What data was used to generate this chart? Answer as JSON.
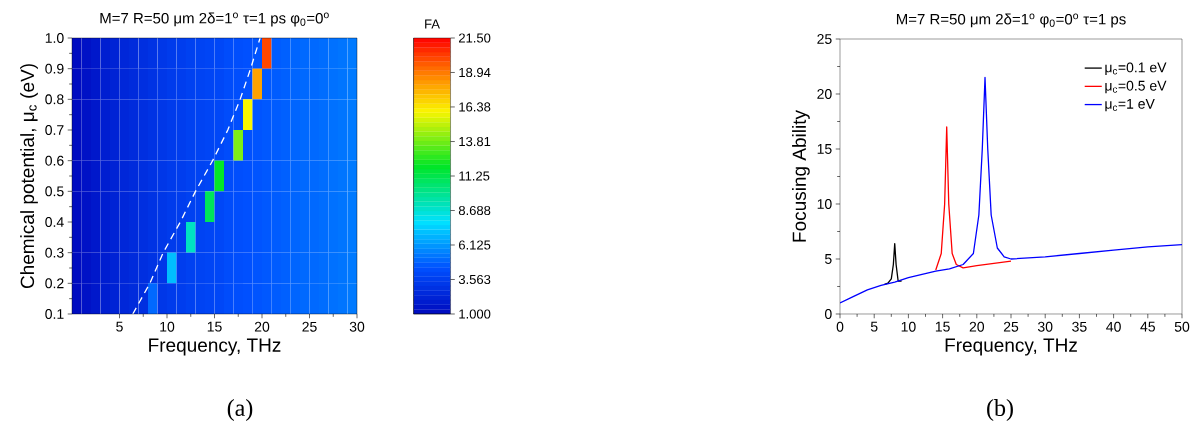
{
  "chart_data": [
    {
      "type": "heatmap",
      "title": "M=7 R=50 μm 2δ=1$^{o}$ τ=1 ps φ$_{0}$=0$^{o}$",
      "xlabel": "Frequency, THz",
      "ylabel": "Chemical potential, μ$_{c}$ (eV)",
      "clabel": "FA",
      "annotations": [
        "(a)"
      ],
      "x": [
        0.5,
        1.5,
        2.5,
        3.5,
        4.5,
        5.5,
        6.5,
        7.5,
        8.5,
        9.5,
        10.5,
        11.5,
        12.5,
        13.5,
        14.5,
        15.5,
        16.5,
        17.5,
        18.5,
        19.5,
        20.5,
        21.5,
        22.5,
        23.5,
        24.5,
        25.5,
        26.5,
        27.5,
        28.5,
        29.5
      ],
      "y": [
        0.95,
        0.85,
        0.75,
        0.65,
        0.55,
        0.45,
        0.35,
        0.25,
        0.15
      ],
      "cells": [
        [
          1.1,
          1.4,
          1.7,
          2.0,
          2.2,
          2.4,
          2.6,
          2.8,
          3.0,
          3.2,
          3.4,
          3.5,
          3.7,
          3.8,
          3.9,
          4.0,
          4.2,
          4.3,
          4.4,
          4.5,
          20,
          4.7,
          4.8,
          4.9,
          5.0,
          5.0,
          5.1,
          5.2,
          5.3,
          5.4
        ],
        [
          1.1,
          1.4,
          1.7,
          2.0,
          2.2,
          2.4,
          2.6,
          2.8,
          3.0,
          3.2,
          3.4,
          3.5,
          3.7,
          3.8,
          3.9,
          4.0,
          4.2,
          4.3,
          4.4,
          18,
          4.6,
          4.7,
          4.8,
          4.9,
          5.0,
          5.0,
          5.1,
          5.2,
          5.3,
          5.4
        ],
        [
          1.1,
          1.4,
          1.7,
          2.0,
          2.2,
          2.4,
          2.6,
          2.8,
          3.0,
          3.2,
          3.4,
          3.5,
          3.7,
          3.8,
          3.9,
          4.0,
          4.2,
          4.3,
          16,
          4.5,
          4.6,
          4.7,
          4.8,
          4.9,
          5.0,
          5.0,
          5.1,
          5.2,
          5.3,
          5.4
        ],
        [
          1.1,
          1.4,
          1.7,
          2.0,
          2.2,
          2.4,
          2.6,
          2.8,
          3.0,
          3.2,
          3.4,
          3.5,
          3.7,
          3.8,
          3.9,
          4.0,
          4.2,
          14,
          4.4,
          4.5,
          4.6,
          4.7,
          4.8,
          4.9,
          5.0,
          5.0,
          5.1,
          5.2,
          5.3,
          5.4
        ],
        [
          1.1,
          1.4,
          1.7,
          2.0,
          2.2,
          2.4,
          2.6,
          2.8,
          3.0,
          3.2,
          3.4,
          3.5,
          3.7,
          3.8,
          3.9,
          12,
          4.2,
          4.3,
          4.4,
          4.5,
          4.6,
          4.7,
          4.8,
          4.9,
          5.0,
          5.0,
          5.1,
          5.2,
          5.3,
          5.4
        ],
        [
          1.1,
          1.4,
          1.7,
          2.0,
          2.2,
          2.4,
          2.6,
          2.8,
          3.0,
          3.2,
          3.4,
          3.5,
          3.7,
          3.8,
          11,
          4.0,
          4.2,
          4.3,
          4.4,
          4.5,
          4.6,
          4.7,
          4.8,
          4.9,
          5.0,
          5.0,
          5.1,
          5.2,
          5.3,
          5.4
        ],
        [
          1.1,
          1.4,
          1.7,
          2.0,
          2.2,
          2.4,
          2.6,
          2.8,
          3.0,
          3.2,
          3.4,
          3.5,
          9,
          3.8,
          3.9,
          4.0,
          4.2,
          4.3,
          4.4,
          4.5,
          4.6,
          4.7,
          4.8,
          4.9,
          5.0,
          5.0,
          5.1,
          5.2,
          5.3,
          5.4
        ],
        [
          1.1,
          1.4,
          1.7,
          2.0,
          2.2,
          2.4,
          2.6,
          2.8,
          3.0,
          3.2,
          7,
          3.5,
          3.7,
          3.8,
          3.9,
          4.0,
          4.2,
          4.3,
          4.4,
          4.5,
          4.6,
          4.7,
          4.8,
          4.9,
          5.0,
          5.0,
          5.1,
          5.2,
          5.3,
          5.4
        ],
        [
          1.1,
          1.4,
          1.7,
          2.0,
          2.2,
          2.4,
          2.6,
          2.8,
          5,
          3.2,
          3.4,
          3.5,
          3.7,
          3.8,
          3.9,
          4.0,
          4.2,
          4.3,
          4.4,
          4.5,
          4.6,
          4.7,
          4.8,
          4.9,
          5.0,
          5.0,
          5.1,
          5.2,
          5.3,
          5.4
        ]
      ],
      "series": [
        {
          "type": "line",
          "color": "#ffffff",
          "line_style": "dashed",
          "x": [
            6.4,
            8.2,
            9.6,
            11.4,
            13.0,
            14.8,
            16.4,
            17.7,
            18.8,
            19.8
          ],
          "values": [
            0.1,
            0.2,
            0.3,
            0.4,
            0.5,
            0.6,
            0.7,
            0.8,
            0.9,
            1.0
          ]
        }
      ],
      "xlim": [
        0,
        30
      ],
      "xticks": [
        5,
        10,
        15,
        20,
        25,
        30
      ],
      "ylim": [
        0.1,
        1.0
      ],
      "yticks": [
        {
          "value": 0.1,
          "label": "0.1"
        },
        {
          "value": 0.2,
          "label": "0.2"
        },
        {
          "value": 0.3,
          "label": "0.3"
        },
        {
          "value": 0.4,
          "label": "0.4"
        },
        {
          "value": 0.5,
          "label": "0.5"
        },
        {
          "value": 0.6,
          "label": "0.6"
        },
        {
          "value": 0.7,
          "label": "0.7"
        },
        {
          "value": 0.8,
          "label": "0.8"
        },
        {
          "value": 0.9,
          "label": "0.9"
        },
        {
          "value": 1.0,
          "label": "1.0"
        }
      ],
      "clim": [
        1,
        21.5
      ],
      "cticks": [
        {
          "value": 1,
          "label": "1.000"
        },
        {
          "value": 3.563,
          "label": "3.563"
        },
        {
          "value": 6.125,
          "label": "6.125"
        },
        {
          "value": 8.688,
          "label": "8.688"
        },
        {
          "value": 11.25,
          "label": "11.25"
        },
        {
          "value": 13.81,
          "label": "13.81"
        },
        {
          "value": 16.38,
          "label": "16.38"
        },
        {
          "value": 18.94,
          "label": "18.94"
        },
        {
          "value": 21.5,
          "label": "21.50"
        }
      ]
    },
    {
      "type": "line",
      "title": "M=7 R=50 μm 2δ=1$^{o}$ φ$_{0}$=0$^{o}$ τ=1 ps",
      "xlabel": "Frequency, THz",
      "ylabel": "Focusing Ability",
      "annotations": [
        "(b)"
      ],
      "series": [
        {
          "name": "μ$_{c}$=0.1 eV",
          "color": "#000000",
          "x": [
            6.5,
            7,
            7.5,
            7.8,
            8.0,
            8.2,
            8.5,
            9
          ],
          "values": [
            2.7,
            2.8,
            3.2,
            4.5,
            6.4,
            4.5,
            3.0,
            3.0
          ]
        },
        {
          "name": "μ$_{c}$=0.5 eV",
          "color": "#ff0000",
          "x": [
            14,
            14.8,
            15.3,
            15.6,
            15.9,
            16.4,
            17,
            18,
            20,
            25
          ],
          "values": [
            4.0,
            5.5,
            10,
            17.0,
            10,
            5.5,
            4.5,
            4.2,
            4.4,
            4.8
          ]
        },
        {
          "name": "μ$_{c}$=1 eV",
          "color": "#0000ff",
          "x": [
            0,
            2,
            4,
            6,
            8,
            10,
            12,
            14,
            16,
            18,
            19.5,
            20.3,
            20.8,
            21.2,
            21.6,
            22.1,
            23,
            24,
            25,
            30,
            35,
            40,
            45,
            50
          ],
          "values": [
            1.0,
            1.6,
            2.2,
            2.6,
            2.9,
            3.3,
            3.6,
            3.9,
            4.1,
            4.5,
            5.5,
            9,
            15,
            21.5,
            15,
            9,
            6,
            5.2,
            5.0,
            5.2,
            5.5,
            5.8,
            6.1,
            6.3
          ]
        }
      ],
      "xlim": [
        0,
        50
      ],
      "xticks": [
        0,
        5,
        10,
        15,
        20,
        25,
        30,
        35,
        40,
        45,
        50
      ],
      "ylim": [
        0,
        25
      ],
      "yticks": [
        0,
        5,
        10,
        15,
        20,
        25
      ],
      "legend": "top right",
      "grid": false
    }
  ]
}
